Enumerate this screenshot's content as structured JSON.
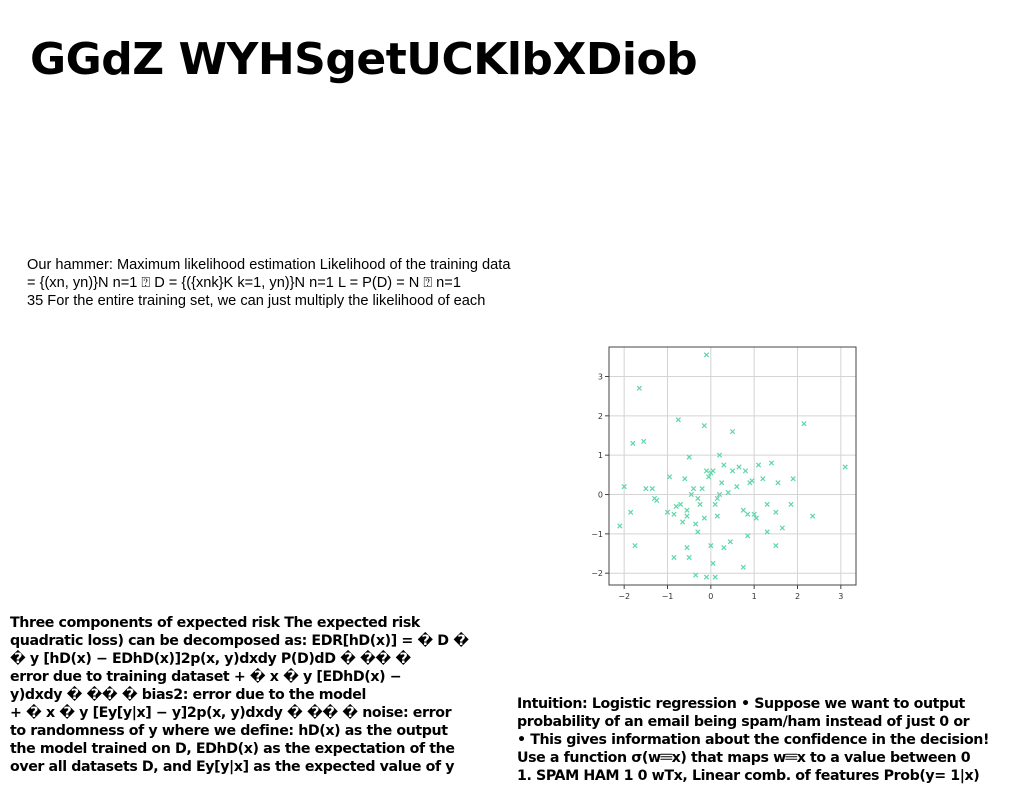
{
  "page": {
    "title": "GGdZ WYHSgetUCKlbXDiob"
  },
  "likelihood": {
    "lines": [
      "Our hammer: Maximum likelihood estimation Likelihood of the training data",
      "= {(xn, yn)}N n=1 ⍰ D = {({xnk}K k=1, yn)}N n=1 L = P(D) = N ⍰ n=1",
      "35 For the entire training set, we can just multiply the likelihood of each"
    ]
  },
  "risk": {
    "lines": [
      "Three components of expected risk The expected risk",
      "quadratic loss) can be decomposed as: EDR[hD(x)] = � D �",
      "� y [hD(x) − EDhD(x)]2p(x, y)dxdy P(D)dD � �� �",
      "error due to training dataset + � x � y [EDhD(x) −",
      "y)dxdy � �� � bias2: error due to the model",
      "+ � x � y [Ey[y|x] − y]2p(x, y)dxdy � �� � noise: error",
      "to randomness of y where we define: hD(x) as the output",
      "the model trained on D, EDhD(x) as the expectation of the",
      "over all datasets D, and Ey[y|x] as the expected value of y"
    ]
  },
  "logistic": {
    "lines": [
      "Intuition: Logistic regression • Suppose we want to output",
      "probability of an email being spam/ham instead of just 0 or",
      "• This gives information about the confidence in the decision!",
      "Use a function σ(w𝄘x) that maps w𝄘x to a value between 0",
      "1. SPAM HAM 1 0 wTx, Linear comb. of features Prob(y= 1|x)"
    ]
  },
  "chart_data": {
    "type": "scatter",
    "marker": "x",
    "color": "#5fd6a8",
    "grid": true,
    "xlim": [
      -2.35,
      3.35
    ],
    "ylim": [
      -2.3,
      3.75
    ],
    "xticks": [
      -2,
      -1,
      0,
      1,
      2,
      3
    ],
    "yticks": [
      -2,
      -1,
      0,
      1,
      2,
      3
    ],
    "x": [
      -0.1,
      -1.65,
      -1.8,
      -1.55,
      -0.75,
      -0.15,
      0.5,
      2.15,
      3.1,
      -2.1,
      -2.0,
      -1.85,
      -1.75,
      -1.5,
      -1.35,
      -1.25,
      -1.0,
      -0.95,
      -0.85,
      -0.8,
      -0.7,
      -0.65,
      -0.6,
      -0.55,
      -0.55,
      -0.5,
      -0.45,
      -0.4,
      -0.35,
      -0.3,
      -0.3,
      -0.25,
      -0.2,
      -0.15,
      -0.1,
      -0.05,
      0.0,
      0.05,
      0.1,
      0.15,
      0.15,
      0.2,
      0.25,
      0.3,
      0.4,
      0.5,
      0.6,
      0.65,
      0.75,
      0.8,
      0.85,
      0.9,
      0.95,
      1.0,
      1.05,
      1.1,
      1.2,
      1.3,
      1.4,
      1.5,
      1.55,
      1.65,
      1.85,
      1.9,
      2.35,
      -1.3,
      -0.85,
      -0.55,
      0.0,
      0.05,
      0.3,
      0.75,
      0.85,
      1.5,
      -0.35,
      -0.5,
      -0.1,
      0.1,
      0.45,
      1.3,
      0.2
    ],
    "y": [
      3.55,
      2.7,
      1.3,
      1.35,
      1.9,
      1.75,
      1.6,
      1.8,
      0.7,
      -0.8,
      0.2,
      -0.45,
      -1.3,
      0.15,
      0.15,
      -0.15,
      -0.45,
      0.45,
      -0.5,
      -0.3,
      -0.25,
      -0.7,
      0.4,
      -0.4,
      -0.55,
      0.95,
      0.0,
      0.15,
      -0.75,
      -0.1,
      -0.95,
      -0.25,
      0.15,
      -0.6,
      0.6,
      0.45,
      0.55,
      0.6,
      -0.25,
      -0.55,
      -0.1,
      0.0,
      0.3,
      0.75,
      0.05,
      0.6,
      0.2,
      0.7,
      -0.4,
      0.6,
      -0.5,
      0.3,
      0.35,
      -0.5,
      -0.6,
      0.75,
      0.4,
      -0.25,
      0.8,
      -0.45,
      0.3,
      -0.85,
      -0.25,
      0.4,
      -0.55,
      -0.1,
      -1.6,
      -1.35,
      -1.3,
      -1.75,
      -1.35,
      -1.85,
      -1.05,
      -1.3,
      -2.05,
      -1.6,
      -2.1,
      -2.1,
      -1.2,
      -0.95,
      1.0
    ]
  }
}
